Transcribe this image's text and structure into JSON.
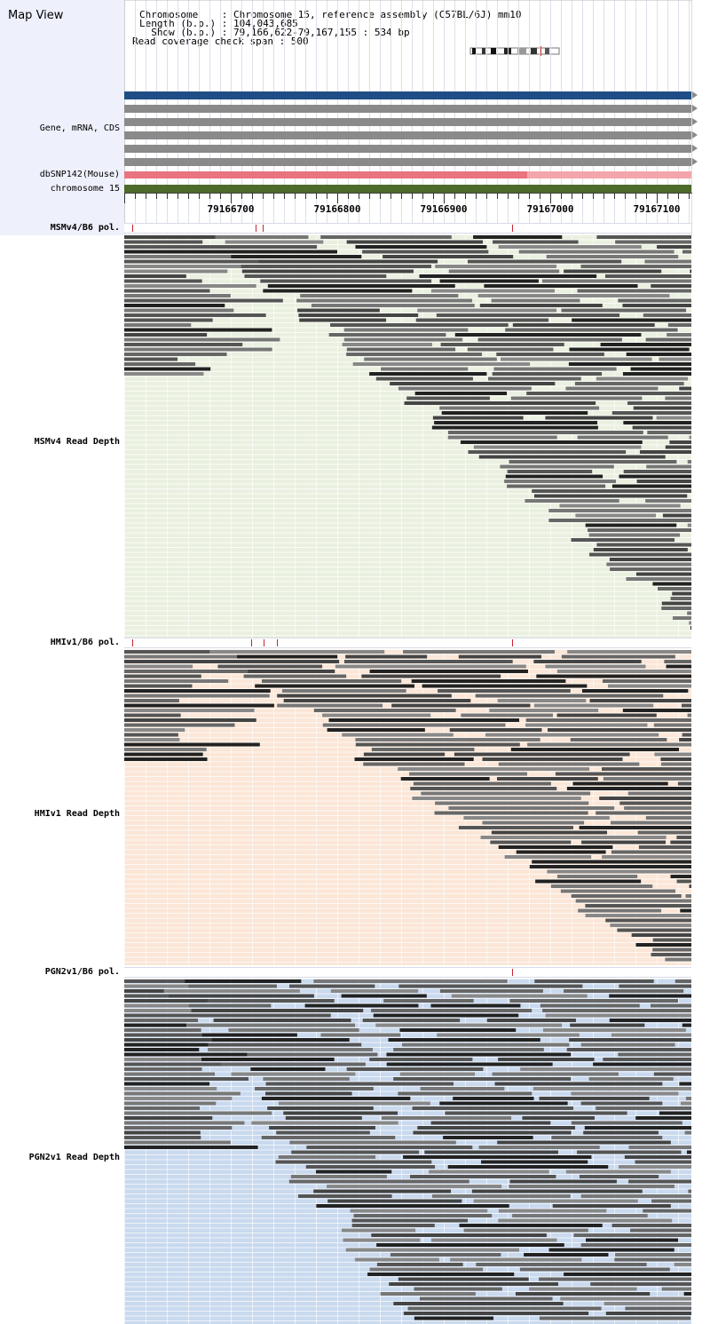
{
  "header": {
    "map_title": "Map View",
    "chromosome_line": "Chromosome    : Chromosome 15, reference assembly (C57BL/6J) mm10",
    "length_line": "Length (b.p.) : 104,043,685",
    "show_line": "  Show (b.p.) : 79,166,622-79,167,155 : 534 bp",
    "span_line": "Read coverage check span : 500"
  },
  "tracks": {
    "gene_label": "Gene, mRNA, CDS",
    "snp_label": "dbSNP142(Mouse)",
    "chrom_label": "chromosome 15"
  },
  "ruler": {
    "ticks": [
      "79166700",
      "79166800",
      "79166900",
      "79167000",
      "79167100"
    ]
  },
  "panels": [
    {
      "pol_label": "MSMv4/B6 pol.",
      "depth_label": "MSMv4 Read Depth"
    },
    {
      "pol_label": "HMIv1/B6 pol.",
      "depth_label": "HMIv1 Read Depth"
    },
    {
      "pol_label": "PGN2v1/B6 pol.",
      "depth_label": "PGN2v1 Read Depth"
    }
  ],
  "colors": {
    "gene_blue": "#1f4e86",
    "gene_gray": "#8a8a8a",
    "snp_pink": "#e9737e",
    "chrom_green": "#4c6a2a",
    "msm_bg": "#eaf0e0",
    "hmi_bg": "#fbe6d7",
    "pgn_bg": "#c9d9ee",
    "snp_marker": "#cc2233"
  }
}
